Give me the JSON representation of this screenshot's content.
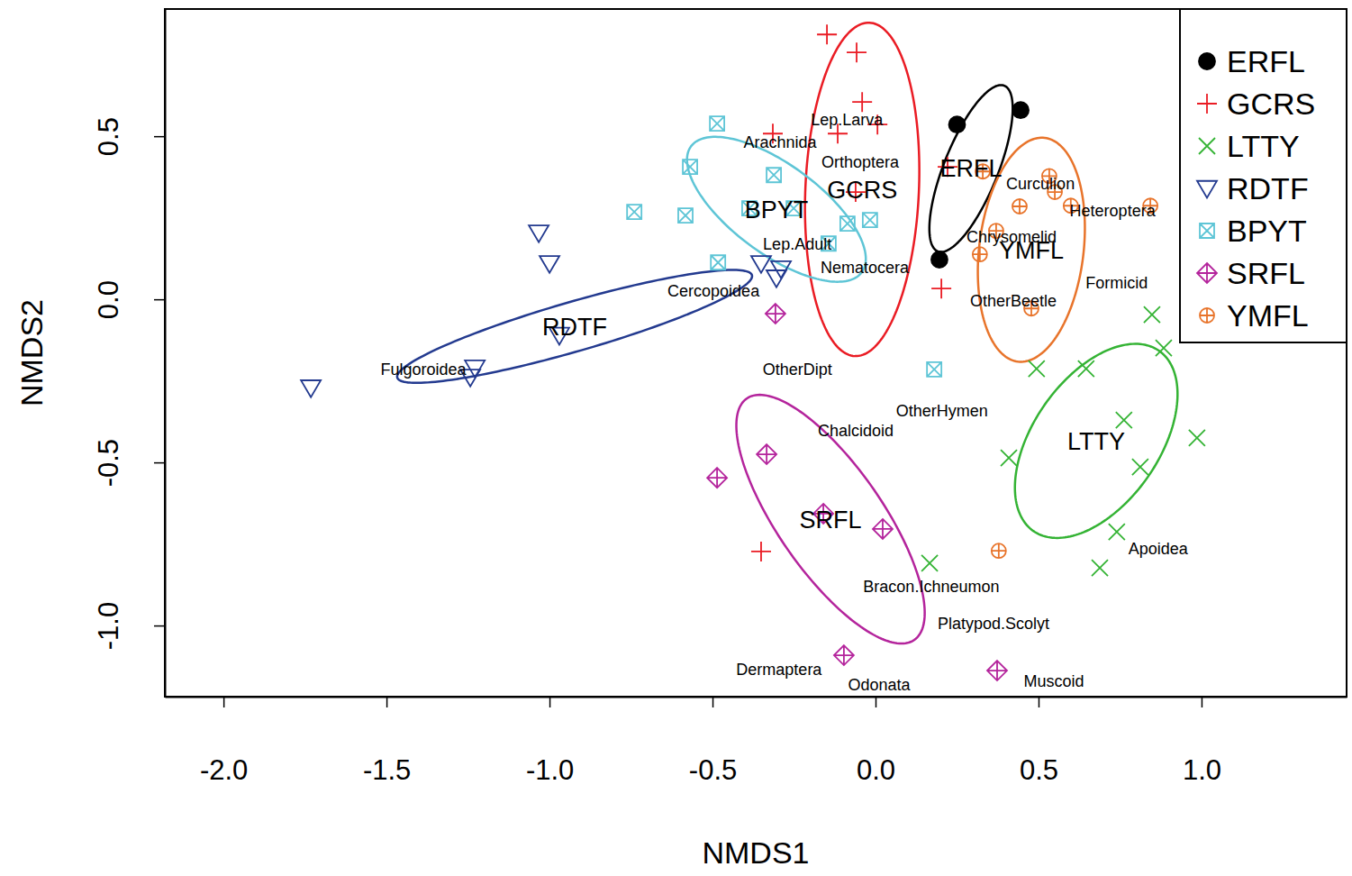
{
  "chart_data": {
    "type": "scatter",
    "xlabel": "NMDS1",
    "ylabel": "NMDS2",
    "xlim": [
      -2.18,
      1.445
    ],
    "ylim": [
      -1.218,
      0.89
    ],
    "xticks": [
      {
        "value": -2,
        "label": "-2.0"
      },
      {
        "value": -1.5,
        "label": "-1.5"
      },
      {
        "value": -1,
        "label": "-1.0"
      },
      {
        "value": -0.5,
        "label": "-0.5"
      },
      {
        "value": 0,
        "label": "0.0"
      },
      {
        "value": 0.5,
        "label": "0.5"
      },
      {
        "value": 1,
        "label": "1.0"
      }
    ],
    "yticks": [
      {
        "value": 0.5,
        "label": "0.5"
      },
      {
        "value": 0,
        "label": "0.0"
      },
      {
        "value": -0.5,
        "label": "-0.5"
      },
      {
        "value": -1,
        "label": "-1.0"
      }
    ],
    "legend": "top-right",
    "series": [
      {
        "name": "ERFL",
        "color": "#000000",
        "marker": "circle-filled",
        "x": [
          0.25,
          0.445,
          0.196
        ],
        "values": [
          0.536,
          0.58,
          0.122
        ],
        "ellipse": {
          "center": [
            0.293,
            0.401
          ],
          "axis1": [
            0.102,
            0.254
          ],
          "axis2": [
            0.077,
            -0.031
          ]
        }
      },
      {
        "name": "GCRS",
        "color": "#ea1c24",
        "marker": "plus",
        "x": [
          -0.149,
          -0.058,
          -0.041,
          -0.315,
          -0.116,
          0.006,
          0.221,
          -0.061,
          0.202,
          -0.351
        ],
        "values": [
          0.812,
          0.757,
          0.605,
          0.508,
          0.508,
          0.536,
          0.406,
          0.329,
          0.033,
          -0.773
        ],
        "ellipse": {
          "center": [
            -0.041,
            0.337
          ],
          "axis1": [
            0.022,
            0.511
          ],
          "axis2": [
            0.174,
            -0.007
          ]
        }
      },
      {
        "name": "LTTY",
        "color": "#34b334",
        "marker": "x",
        "x": [
          0.848,
          0.884,
          0.986,
          0.494,
          0.646,
          0.762,
          0.812,
          0.409,
          0.74,
          0.688,
          0.166
        ],
        "values": [
          -0.047,
          -0.149,
          -0.425,
          -0.213,
          -0.213,
          -0.37,
          -0.514,
          -0.486,
          -0.713,
          -0.823,
          -0.809
        ],
        "ellipse": {
          "center": [
            0.677,
            -0.434
          ],
          "axis1": [
            0.193,
            0.276
          ],
          "axis2": [
            0.158,
            -0.111
          ]
        }
      },
      {
        "name": "RDTF",
        "color": "#233a8f",
        "marker": "triangle-down",
        "x": [
          -1.033,
          -1.0,
          -0.351,
          -0.29,
          -0.304,
          -0.97,
          -1.229,
          -1.243,
          -1.732
        ],
        "values": [
          0.204,
          0.11,
          0.11,
          0.094,
          0.066,
          -0.11,
          -0.21,
          -0.238,
          -0.271
        ],
        "ellipse": {
          "center": [
            -0.923,
            -0.083
          ],
          "axis1": [
            0.544,
            0.157
          ],
          "axis2": [
            -0.021,
            0.073
          ]
        }
      },
      {
        "name": "BPYT",
        "color": "#5ec5d6",
        "marker": "square-x",
        "x": [
          -0.486,
          -0.569,
          -0.74,
          -0.583,
          -0.312,
          -0.387,
          -0.251,
          -0.086,
          -0.017,
          -0.483,
          -0.144,
          0.18
        ],
        "values": [
          0.539,
          0.406,
          0.268,
          0.257,
          0.381,
          0.279,
          0.279,
          0.232,
          0.243,
          0.113,
          0.171,
          -0.215
        ],
        "ellipse": {
          "center": [
            -0.304,
            0.276
          ],
          "axis1": [
            -0.262,
            0.193
          ],
          "axis2": [
            0.081,
            0.11
          ]
        }
      },
      {
        "name": "SRFL",
        "color": "#b4249c",
        "marker": "diamond-plus",
        "x": [
          -0.307,
          -0.334,
          -0.486,
          -0.16,
          0.022,
          -0.097,
          0.373
        ],
        "values": [
          -0.044,
          -0.475,
          -0.547,
          -0.657,
          -0.704,
          -1.091,
          -1.138
        ],
        "ellipse": {
          "center": [
            -0.138,
            -0.674
          ],
          "axis1": [
            0.257,
            -0.37
          ],
          "axis2": [
            0.132,
            0.092
          ]
        }
      },
      {
        "name": "YMFL",
        "color": "#e8742b",
        "marker": "circle-plus",
        "x": [
          0.329,
          0.533,
          0.55,
          0.442,
          0.37,
          0.32,
          0.599,
          0.843,
          0.478,
          0.378
        ],
        "values": [
          0.392,
          0.378,
          0.329,
          0.285,
          0.21,
          0.138,
          0.287,
          0.287,
          -0.028,
          -0.771
        ],
        "ellipse": {
          "center": [
            0.478,
            0.152
          ],
          "axis1": [
            0.041,
            0.343
          ],
          "axis2": [
            0.159,
            -0.019
          ]
        }
      }
    ],
    "annotations": [
      {
        "text": "Lep.Larva",
        "x": -0.088,
        "y": 0.552
      },
      {
        "text": "Arachnida",
        "x": -0.293,
        "y": 0.481
      },
      {
        "text": "Orthoptera",
        "x": -0.047,
        "y": 0.42
      },
      {
        "text": "Curculion",
        "x": 0.506,
        "y": 0.354
      },
      {
        "text": "Heteroptera",
        "x": 0.727,
        "y": 0.273
      },
      {
        "text": "Lep.Adult",
        "x": -0.24,
        "y": 0.171
      },
      {
        "text": "Chrysomelid",
        "x": 0.417,
        "y": 0.191
      },
      {
        "text": "Nematocera",
        "x": -0.033,
        "y": 0.099
      },
      {
        "text": "Formicid",
        "x": 0.74,
        "y": 0.052
      },
      {
        "text": "Cercopoidea",
        "x": -0.497,
        "y": 0.025
      },
      {
        "text": "OtherBeetle",
        "x": 0.423,
        "y": -0.003
      },
      {
        "text": "Fulgoroidea",
        "x": -1.387,
        "y": -0.213
      },
      {
        "text": "OtherDipt",
        "x": -0.24,
        "y": -0.215
      },
      {
        "text": "OtherHymen",
        "x": 0.204,
        "y": -0.34
      },
      {
        "text": "Chalcidoid",
        "x": -0.061,
        "y": -0.403
      },
      {
        "text": "Apoidea",
        "x": 0.867,
        "y": -0.765
      },
      {
        "text": "Bracon.Ichneumon",
        "x": 0.171,
        "y": -0.881
      },
      {
        "text": "Platypod.Scolyt",
        "x": 0.362,
        "y": -0.994
      },
      {
        "text": "Dermaptera",
        "x": -0.296,
        "y": -1.135
      },
      {
        "text": "Odonata",
        "x": 0.011,
        "y": -1.18
      },
      {
        "text": "Muscoid",
        "x": 0.547,
        "y": -1.169
      }
    ]
  }
}
